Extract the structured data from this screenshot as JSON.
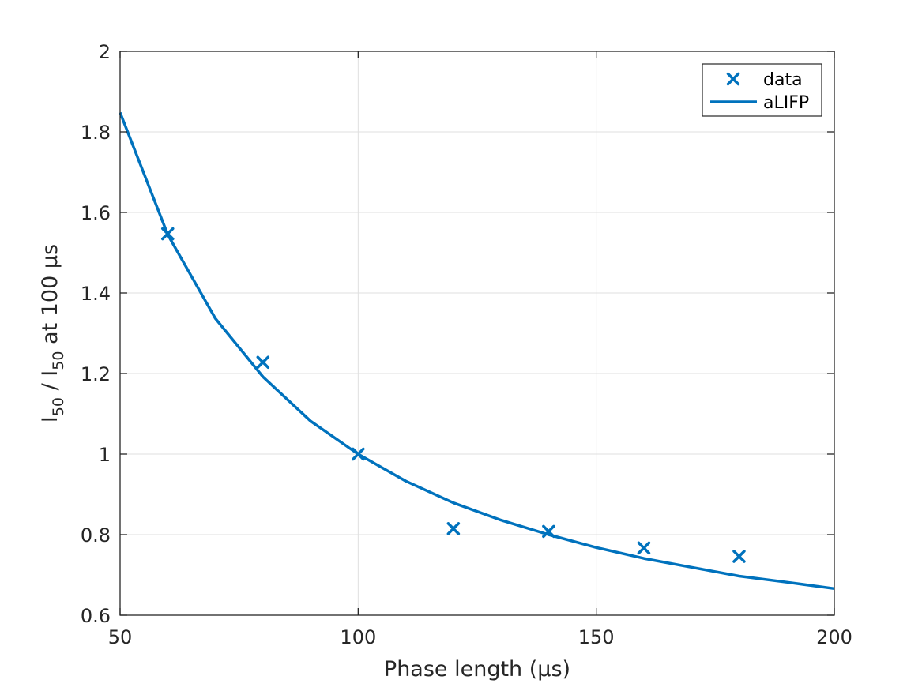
{
  "chart_data": {
    "type": "line",
    "xlabel": "Phase length (μs)",
    "ylabel": {
      "parts": [
        {
          "t": "I",
          "sub": false
        },
        {
          "t": "50",
          "sub": true
        },
        {
          "t": " / I",
          "sub": false
        },
        {
          "t": "50",
          "sub": true
        },
        {
          "t": " at 100 μs",
          "sub": false
        }
      ]
    },
    "xlim": [
      50,
      200
    ],
    "ylim": [
      0.6,
      2
    ],
    "xticks": [
      50,
      100,
      150,
      200
    ],
    "yticks": [
      0.6,
      0.8,
      1,
      1.2,
      1.4,
      1.6,
      1.8,
      2
    ],
    "xtick_labels": [
      "50",
      "100",
      "150",
      "200"
    ],
    "ytick_labels": [
      "0.6",
      "0.8",
      "1",
      "1.2",
      "1.4",
      "1.6",
      "1.8",
      "2"
    ],
    "grid": true,
    "legend_position": "top-right",
    "series": [
      {
        "name": "data",
        "kind": "scatter",
        "marker": "x",
        "color": "#0072BD",
        "x": [
          60,
          80,
          100,
          120,
          140,
          160,
          180
        ],
        "y": [
          1.547,
          1.228,
          1.0,
          0.815,
          0.808,
          0.767,
          0.746
        ]
      },
      {
        "name": "aLIFP",
        "kind": "line",
        "color": "#0072BD",
        "x": [
          50,
          60,
          70,
          80,
          90,
          100,
          110,
          120,
          130,
          140,
          150,
          160,
          170,
          180,
          190,
          200
        ],
        "y": [
          1.848,
          1.545,
          1.337,
          1.192,
          1.082,
          1.0,
          0.933,
          0.879,
          0.836,
          0.8,
          0.768,
          0.741,
          0.719,
          0.697,
          0.682,
          0.666
        ]
      }
    ]
  }
}
